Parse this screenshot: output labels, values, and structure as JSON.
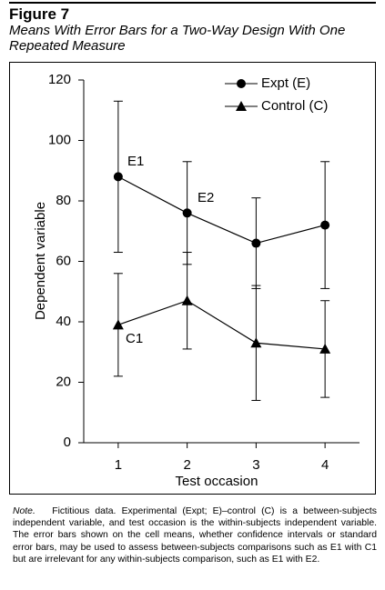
{
  "chart_data": {
    "type": "line",
    "figure_label": "Figure 7",
    "title": "Means With Error Bars for a Two-Way Design With One Repeated Measure",
    "x_label": "Test occasion",
    "y_label": "Dependent variable",
    "x": [
      1,
      2,
      3,
      4
    ],
    "xlim": [
      0.5,
      4.5
    ],
    "xticks": [
      1,
      2,
      3,
      4
    ],
    "ylim": [
      0,
      120
    ],
    "yticks": [
      0,
      20,
      40,
      60,
      80,
      100,
      120
    ],
    "legend": "upper right",
    "series": [
      {
        "name": "Expt (E)",
        "color": "#000000",
        "marker": "circle",
        "values": [
          88,
          76,
          66,
          72
        ],
        "errors": [
          25,
          17,
          15,
          21
        ]
      },
      {
        "name": "Control (C)",
        "color": "#000000",
        "marker": "triangle",
        "values": [
          39,
          47,
          33,
          31
        ],
        "errors": [
          17,
          16,
          19,
          16
        ]
      }
    ],
    "annotations": [
      "E1",
      "E2",
      "C1"
    ],
    "note_label": "Note.",
    "note": "Fictitious data. Experimental (Expt; E)–control (C) is a between-subjects independent variable, and test occasion is the within-subjects independent variable. The error bars shown on the cell means, whether confidence intervals or standard error bars, may be used to assess between-subjects comparisons such as E1 with C1 but are irrelevant for any within-subjects comparison, such as E1 with E2."
  }
}
